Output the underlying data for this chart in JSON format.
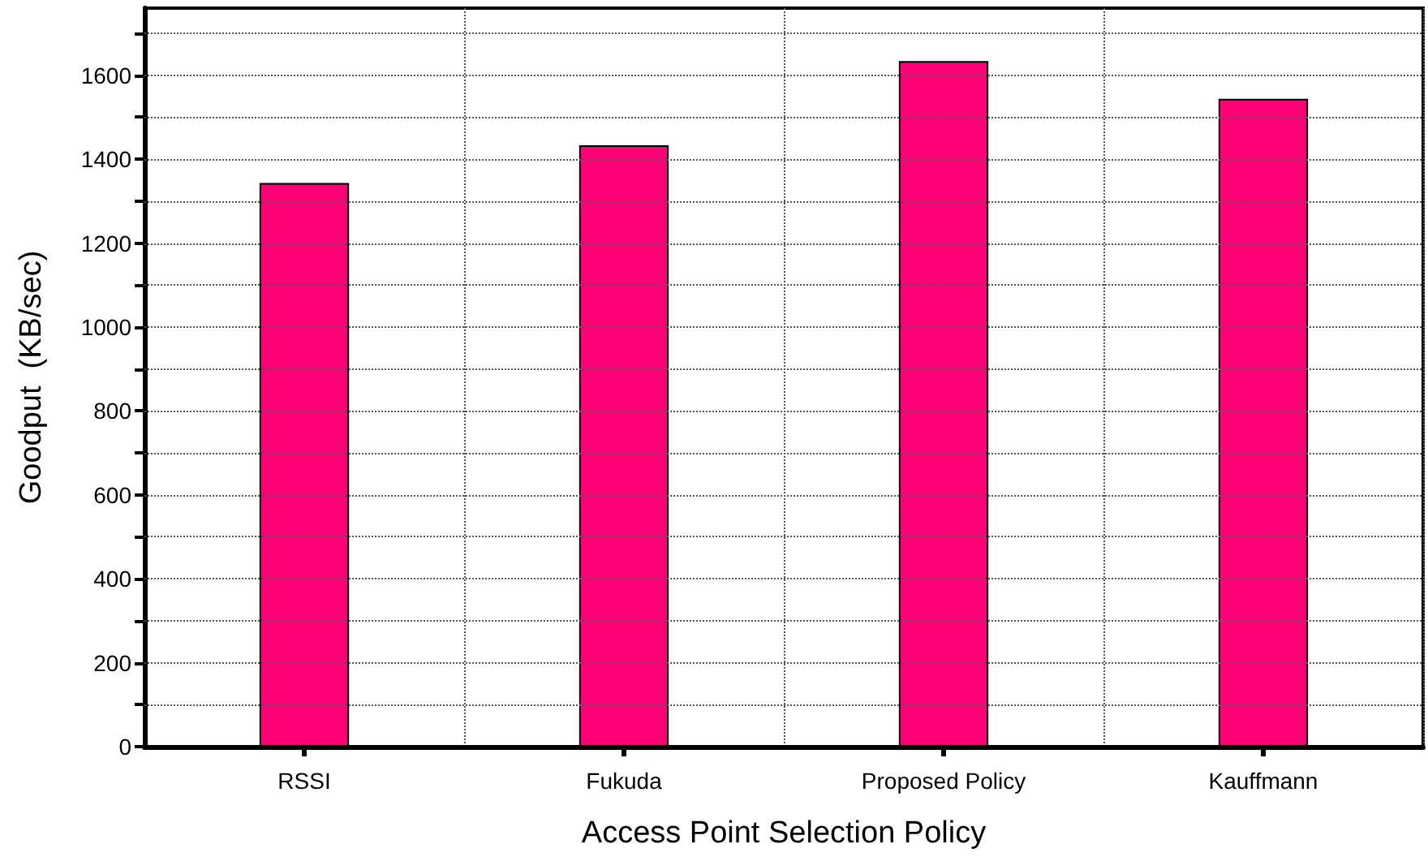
{
  "chart_data": {
    "type": "bar",
    "xlabel": "Access Point Selection Policy",
    "ylabel": "Goodput  (KB/sec)",
    "categories": [
      "RSSI",
      "Fukuda",
      "Proposed Policy",
      "Kauffmann"
    ],
    "values": [
      1343,
      1433,
      1634,
      1544
    ],
    "color": "#ff0077",
    "ylim": [
      0,
      1760
    ],
    "yticks": [
      0,
      {
        "value": 100,
        "label": null
      },
      200,
      {
        "value": 300,
        "label": null
      },
      400,
      {
        "value": 500,
        "label": null
      },
      600,
      {
        "value": 700,
        "label": null
      },
      800,
      {
        "value": 900,
        "label": null
      },
      1000,
      {
        "value": 1100,
        "label": null
      },
      1200,
      {
        "value": 1300,
        "label": null
      },
      1400,
      {
        "value": 1500,
        "label": null
      },
      1600,
      {
        "value": 1700,
        "label": null
      }
    ],
    "grid": true
  }
}
